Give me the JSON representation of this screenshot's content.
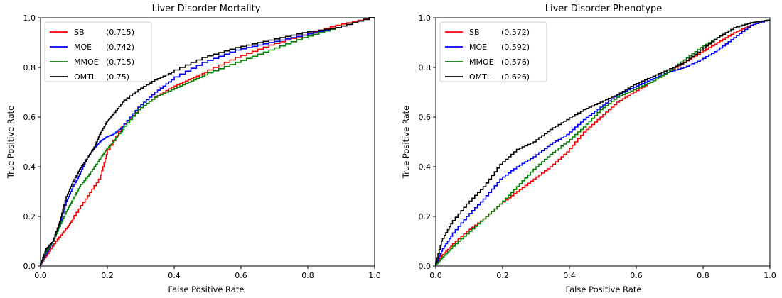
{
  "chart_data": [
    {
      "type": "line",
      "title": "Liver Disorder Mortality",
      "xlabel": "False Positive Rate",
      "ylabel": "True Positive Rate",
      "xlim": [
        0,
        1
      ],
      "ylim": [
        0,
        1
      ],
      "xticks": [
        "0.0",
        "0.2",
        "0.4",
        "0.6",
        "0.8",
        "1.0"
      ],
      "yticks": [
        "0.0",
        "0.2",
        "0.4",
        "0.6",
        "0.8",
        "1.0"
      ],
      "grid": false,
      "legend_position": "top-left",
      "series": [
        {
          "name": "SB",
          "auc": "(0.715)",
          "color": "#ff0000",
          "x": [
            0,
            0.02,
            0.05,
            0.08,
            0.1,
            0.14,
            0.18,
            0.2,
            0.25,
            0.3,
            0.35,
            0.4,
            0.45,
            0.5,
            0.6,
            0.7,
            0.8,
            0.9,
            1.0
          ],
          "y": [
            0,
            0.04,
            0.1,
            0.15,
            0.19,
            0.27,
            0.35,
            0.45,
            0.56,
            0.63,
            0.68,
            0.72,
            0.75,
            0.78,
            0.84,
            0.89,
            0.93,
            0.97,
            1.0
          ]
        },
        {
          "name": "MOE",
          "auc": "(0.742)",
          "color": "#0000ff",
          "x": [
            0,
            0.02,
            0.04,
            0.06,
            0.08,
            0.1,
            0.12,
            0.14,
            0.16,
            0.18,
            0.2,
            0.22,
            0.25,
            0.3,
            0.35,
            0.4,
            0.5,
            0.6,
            0.7,
            0.8,
            0.9,
            1.0
          ],
          "y": [
            0,
            0.05,
            0.1,
            0.17,
            0.26,
            0.32,
            0.37,
            0.43,
            0.47,
            0.5,
            0.52,
            0.53,
            0.56,
            0.64,
            0.7,
            0.75,
            0.82,
            0.87,
            0.9,
            0.93,
            0.96,
            1.0
          ]
        },
        {
          "name": "MMOE",
          "auc": "(0.715)",
          "color": "#008000",
          "x": [
            0,
            0.02,
            0.04,
            0.06,
            0.08,
            0.1,
            0.12,
            0.15,
            0.18,
            0.2,
            0.22,
            0.25,
            0.3,
            0.35,
            0.4,
            0.45,
            0.5,
            0.6,
            0.7,
            0.8,
            0.9,
            1.0
          ],
          "y": [
            0,
            0.06,
            0.1,
            0.16,
            0.22,
            0.27,
            0.32,
            0.37,
            0.43,
            0.47,
            0.5,
            0.55,
            0.63,
            0.68,
            0.71,
            0.74,
            0.77,
            0.82,
            0.87,
            0.92,
            0.96,
            1.0
          ]
        },
        {
          "name": "OMTL",
          "auc": "(0.75)",
          "color": "#000000",
          "x": [
            0,
            0.02,
            0.04,
            0.06,
            0.08,
            0.1,
            0.12,
            0.14,
            0.16,
            0.18,
            0.2,
            0.22,
            0.25,
            0.3,
            0.35,
            0.4,
            0.5,
            0.6,
            0.7,
            0.8,
            0.9,
            1.0
          ],
          "y": [
            0,
            0.07,
            0.1,
            0.18,
            0.28,
            0.34,
            0.39,
            0.43,
            0.47,
            0.53,
            0.58,
            0.61,
            0.66,
            0.71,
            0.75,
            0.78,
            0.84,
            0.88,
            0.91,
            0.94,
            0.96,
            1.0
          ]
        }
      ]
    },
    {
      "type": "line",
      "title": "Liver Disorder Phenotype",
      "xlabel": "False Positive Rate",
      "ylabel": "True Positive Rate",
      "xlim": [
        0,
        1
      ],
      "ylim": [
        0,
        1
      ],
      "xticks": [
        "0.0",
        "0.2",
        "0.4",
        "0.6",
        "0.8",
        "1.0"
      ],
      "yticks": [
        "0.0",
        "0.2",
        "0.4",
        "0.6",
        "0.8",
        "1.0"
      ],
      "grid": false,
      "legend_position": "top-left",
      "series": [
        {
          "name": "SB",
          "auc": "(0.572)",
          "color": "#ff0000",
          "x": [
            0,
            0.02,
            0.05,
            0.1,
            0.15,
            0.2,
            0.25,
            0.3,
            0.35,
            0.4,
            0.45,
            0.5,
            0.55,
            0.6,
            0.65,
            0.7,
            0.75,
            0.8,
            0.85,
            0.9,
            0.95,
            1.0
          ],
          "y": [
            0,
            0.04,
            0.08,
            0.14,
            0.19,
            0.25,
            0.3,
            0.35,
            0.4,
            0.46,
            0.54,
            0.6,
            0.66,
            0.7,
            0.74,
            0.78,
            0.82,
            0.86,
            0.9,
            0.94,
            0.97,
            0.99
          ]
        },
        {
          "name": "MOE",
          "auc": "(0.592)",
          "color": "#0000ff",
          "x": [
            0,
            0.02,
            0.05,
            0.1,
            0.15,
            0.2,
            0.25,
            0.3,
            0.35,
            0.4,
            0.45,
            0.5,
            0.55,
            0.6,
            0.65,
            0.7,
            0.75,
            0.8,
            0.85,
            0.9,
            0.95,
            1.0
          ],
          "y": [
            0,
            0.06,
            0.12,
            0.2,
            0.27,
            0.35,
            0.4,
            0.44,
            0.49,
            0.53,
            0.59,
            0.64,
            0.69,
            0.72,
            0.75,
            0.78,
            0.8,
            0.83,
            0.87,
            0.92,
            0.97,
            0.99
          ]
        },
        {
          "name": "MMOE",
          "auc": "(0.576)",
          "color": "#008000",
          "x": [
            0,
            0.02,
            0.05,
            0.1,
            0.15,
            0.2,
            0.25,
            0.3,
            0.35,
            0.4,
            0.45,
            0.5,
            0.55,
            0.6,
            0.65,
            0.7,
            0.75,
            0.8,
            0.85,
            0.9,
            0.95,
            1.0
          ],
          "y": [
            0,
            0.03,
            0.07,
            0.13,
            0.19,
            0.25,
            0.32,
            0.39,
            0.45,
            0.5,
            0.56,
            0.63,
            0.68,
            0.71,
            0.74,
            0.78,
            0.83,
            0.88,
            0.92,
            0.96,
            0.98,
            0.99
          ]
        },
        {
          "name": "OMTL",
          "auc": "(0.626)",
          "color": "#000000",
          "x": [
            0,
            0.02,
            0.05,
            0.1,
            0.15,
            0.2,
            0.25,
            0.3,
            0.35,
            0.4,
            0.45,
            0.5,
            0.55,
            0.6,
            0.65,
            0.7,
            0.75,
            0.8,
            0.85,
            0.9,
            0.95,
            1.0
          ],
          "y": [
            0,
            0.1,
            0.17,
            0.25,
            0.32,
            0.41,
            0.47,
            0.5,
            0.55,
            0.59,
            0.63,
            0.66,
            0.69,
            0.73,
            0.76,
            0.79,
            0.82,
            0.87,
            0.92,
            0.96,
            0.98,
            0.99
          ]
        }
      ]
    }
  ]
}
